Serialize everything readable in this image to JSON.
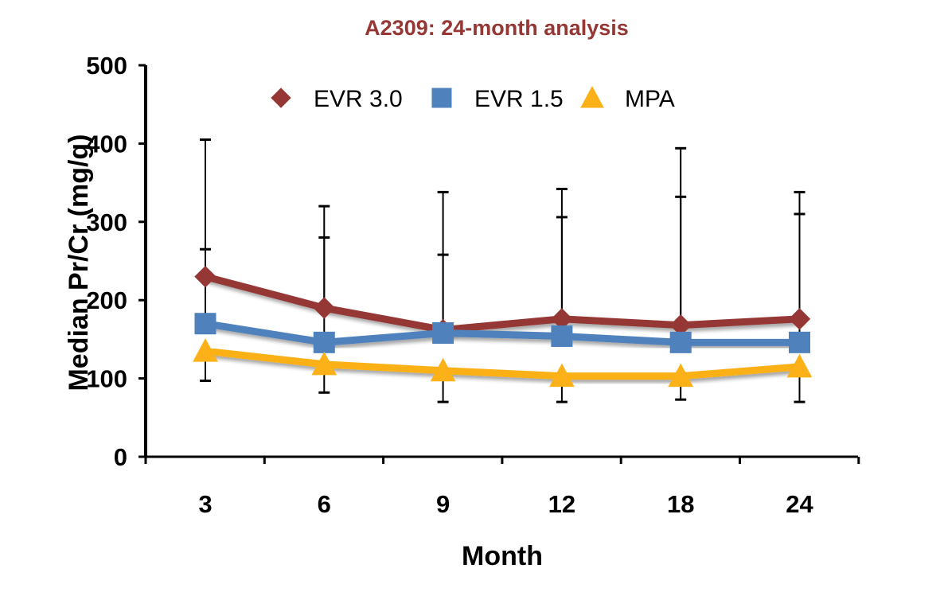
{
  "chart_data": {
    "type": "line",
    "title": "A2309: 24-month analysis",
    "xlabel": "Month",
    "ylabel": "Median Pr/Cr (mg/g)",
    "categories": [
      "3",
      "6",
      "9",
      "12",
      "18",
      "24"
    ],
    "ylim": [
      0,
      500
    ],
    "yticks": [
      "0",
      "100",
      "200",
      "300",
      "400",
      "500"
    ],
    "grid": false,
    "legend_position": "top",
    "error_bars": true,
    "series": [
      {
        "name": "EVR 3.0",
        "color": "#953735",
        "marker": "diamond",
        "values": [
          230,
          190,
          162,
          176,
          168,
          176
        ],
        "error_upper": [
          405,
          320,
          338,
          342,
          394,
          338
        ]
      },
      {
        "name": "EVR 1.5",
        "color": "#4f81bd",
        "marker": "square",
        "values": [
          170,
          146,
          158,
          154,
          146,
          146
        ],
        "error_upper": [
          265,
          280,
          258,
          306,
          332,
          310
        ]
      },
      {
        "name": "MPA",
        "color": "#fbb117",
        "marker": "triangle",
        "values": [
          135,
          118,
          110,
          103,
          103,
          115
        ],
        "error_lower": [
          97,
          82,
          70,
          70,
          73,
          70
        ]
      }
    ]
  }
}
